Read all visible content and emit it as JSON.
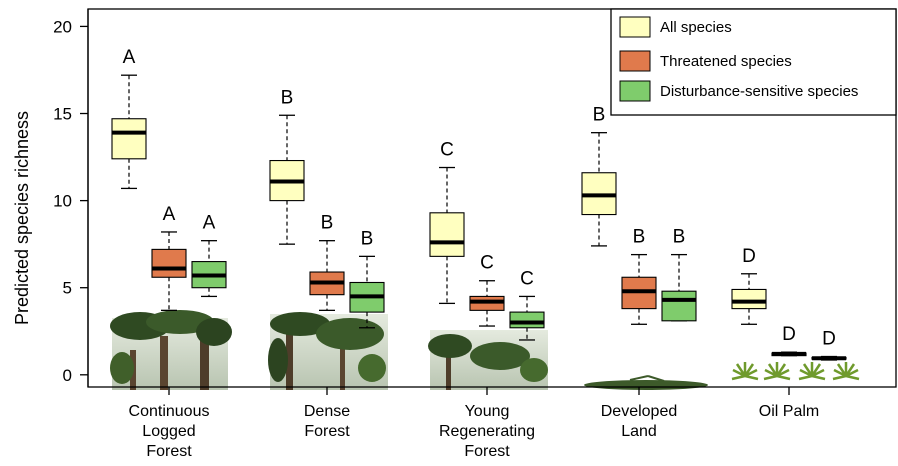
{
  "chart_data": {
    "type": "box",
    "ylabel": "Predicted species richness",
    "yticks": [
      0,
      5,
      10,
      15,
      20
    ],
    "ylim": [
      -0.7,
      21
    ],
    "categories": [
      [
        "Continuous",
        "Logged",
        "Forest"
      ],
      [
        "Dense",
        "Forest"
      ],
      [
        "Young",
        "Regenerating",
        "Forest"
      ],
      [
        "Developed",
        "Land"
      ],
      [
        "Oil Palm"
      ]
    ],
    "series": [
      {
        "name": "All species",
        "color": "#FFFFC0",
        "boxes": [
          {
            "min": 10.7,
            "q1": 12.4,
            "median": 13.9,
            "q3": 14.7,
            "max": 17.2,
            "letter": "A"
          },
          {
            "min": 7.5,
            "q1": 10.0,
            "median": 11.1,
            "q3": 12.3,
            "max": 14.9,
            "letter": "B"
          },
          {
            "min": 4.1,
            "q1": 6.8,
            "median": 7.6,
            "q3": 9.3,
            "max": 11.9,
            "letter": "C"
          },
          {
            "min": 7.4,
            "q1": 9.2,
            "median": 10.3,
            "q3": 11.6,
            "max": 13.9,
            "letter": "B"
          },
          {
            "min": 2.9,
            "q1": 3.8,
            "median": 4.2,
            "q3": 4.9,
            "max": 5.8,
            "letter": "D"
          }
        ]
      },
      {
        "name": "Threatened species",
        "color": "#E07A4C",
        "boxes": [
          {
            "min": 3.7,
            "q1": 5.6,
            "median": 6.1,
            "q3": 7.2,
            "max": 8.2,
            "letter": "A"
          },
          {
            "min": 3.7,
            "q1": 4.6,
            "median": 5.3,
            "q3": 5.9,
            "max": 7.7,
            "letter": "B"
          },
          {
            "min": 2.8,
            "q1": 3.7,
            "median": 4.2,
            "q3": 4.5,
            "max": 5.4,
            "letter": "C"
          },
          {
            "min": 2.9,
            "q1": 3.8,
            "median": 4.8,
            "q3": 5.6,
            "max": 6.9,
            "letter": "B"
          },
          {
            "min": 1.1,
            "q1": 1.1,
            "median": 1.2,
            "q3": 1.25,
            "max": 1.3,
            "letter": "D"
          }
        ]
      },
      {
        "name": "Disturbance-sensitive species",
        "color": "#7FCC6C",
        "boxes": [
          {
            "min": 4.5,
            "q1": 5.0,
            "median": 5.7,
            "q3": 6.5,
            "max": 7.7,
            "letter": "A"
          },
          {
            "min": 2.7,
            "q1": 3.6,
            "median": 4.5,
            "q3": 5.3,
            "max": 6.8,
            "letter": "B"
          },
          {
            "min": 2.0,
            "q1": 2.7,
            "median": 3.0,
            "q3": 3.6,
            "max": 4.5,
            "letter": "C"
          },
          {
            "min": 3.1,
            "q1": 3.1,
            "median": 4.3,
            "q3": 4.8,
            "max": 6.9,
            "letter": "B"
          },
          {
            "min": 0.85,
            "q1": 0.9,
            "median": 0.95,
            "q3": 1.0,
            "max": 1.05,
            "letter": "D"
          }
        ]
      }
    ],
    "legend": {
      "position": "top-right"
    },
    "grid": false
  },
  "colors": {
    "tree": "#2f4a22",
    "trunk": "#5a4530",
    "palm": "#6f9a2c",
    "ground": "#3d5a2a"
  }
}
